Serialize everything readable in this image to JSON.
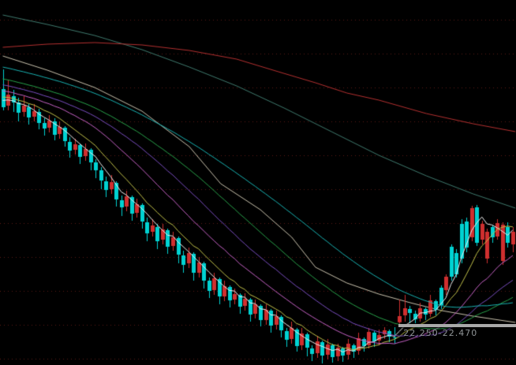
{
  "window": {
    "background": "#000000"
  },
  "chart_data": {
    "type": "candlestick",
    "title": "",
    "xlabel": "",
    "ylabel": "",
    "x_axis_visible": false,
    "y_axis_visible": false,
    "ylim": [
      19.85,
      43.0
    ],
    "bars_visible": 100,
    "grid": {
      "style": "dotted-horizontal",
      "color": "#5c1b14",
      "price_lines": [
        41.76,
        39.61,
        37.46,
        35.31,
        33.16,
        31.01,
        28.86,
        26.71,
        24.56,
        22.41,
        20.26
      ]
    },
    "candle_colors": {
      "up": "#cf2f2f",
      "down": "#00d2d2"
    },
    "gap": {
      "label": "22.250-22.470",
      "low": 22.25,
      "high": 22.47,
      "start_bar": 77,
      "band_color": "#a9a9a9",
      "label_color": "#8f9496"
    },
    "pre_closes": [
      43.3,
      43.2,
      43.15,
      43.05,
      43.0,
      42.9,
      42.85,
      42.75,
      42.7,
      42.6,
      42.55,
      42.45,
      42.4,
      42.3,
      42.25,
      42.15,
      42.1,
      42.0,
      41.95,
      41.85,
      41.8,
      41.7,
      41.65,
      41.55,
      41.5,
      41.4,
      41.35,
      41.25,
      41.2,
      41.1,
      41.05,
      40.95,
      40.9,
      40.8,
      40.75,
      40.65,
      40.6,
      40.5,
      40.45,
      40.35,
      40.3,
      40.2,
      40.15,
      40.05,
      40.0,
      39.9,
      39.85,
      39.75,
      39.7,
      39.6,
      39.55,
      39.45,
      39.4,
      39.3,
      39.25,
      39.15,
      39.1,
      39.0,
      38.95,
      38.85,
      38.8,
      38.7,
      38.65,
      38.55,
      38.5,
      38.4,
      38.35,
      38.25,
      38.2,
      38.1,
      38.05,
      37.95,
      37.9,
      37.8,
      37.75,
      37.65,
      37.6,
      37.5,
      37.45,
      37.35,
      37.3,
      37.2,
      37.15,
      37.05,
      37.0,
      36.9,
      36.85,
      36.75,
      36.7,
      36.65
    ],
    "candles": [
      [
        37.35,
        38.6,
        36.0,
        36.2,
        "c"
      ],
      [
        36.3,
        37.9,
        36.0,
        37.0,
        "r"
      ],
      [
        36.9,
        37.3,
        35.9,
        36.5,
        "c"
      ],
      [
        36.5,
        36.8,
        35.3,
        35.85,
        "c"
      ],
      [
        35.9,
        36.9,
        35.6,
        36.3,
        "r"
      ],
      [
        36.2,
        36.4,
        35.1,
        35.55,
        "c"
      ],
      [
        35.6,
        36.4,
        35.3,
        35.95,
        "r"
      ],
      [
        35.9,
        36.1,
        34.8,
        35.2,
        "c"
      ],
      [
        35.2,
        35.5,
        34.4,
        34.85,
        "c"
      ],
      [
        34.9,
        35.7,
        34.6,
        35.35,
        "r"
      ],
      [
        35.3,
        35.5,
        34.1,
        34.45,
        "c"
      ],
      [
        34.5,
        35.3,
        34.2,
        34.95,
        "r"
      ],
      [
        34.9,
        35.0,
        33.7,
        34.05,
        "c"
      ],
      [
        34.0,
        34.3,
        33.0,
        33.45,
        "c"
      ],
      [
        33.5,
        34.2,
        33.2,
        33.85,
        "r"
      ],
      [
        33.8,
        33.9,
        32.6,
        33.05,
        "c"
      ],
      [
        33.1,
        33.9,
        32.8,
        33.55,
        "r"
      ],
      [
        33.5,
        33.6,
        32.2,
        32.7,
        "c"
      ],
      [
        32.7,
        32.9,
        31.7,
        32.2,
        "c"
      ],
      [
        32.2,
        32.4,
        31.0,
        31.55,
        "c"
      ],
      [
        31.5,
        31.8,
        30.5,
        30.95,
        "c"
      ],
      [
        31.0,
        31.9,
        30.7,
        31.45,
        "r"
      ],
      [
        31.4,
        31.5,
        29.9,
        30.35,
        "c"
      ],
      [
        30.3,
        30.6,
        29.3,
        29.85,
        "c"
      ],
      [
        29.9,
        30.9,
        29.6,
        30.55,
        "r"
      ],
      [
        30.5,
        30.6,
        29.0,
        29.45,
        "c"
      ],
      [
        29.5,
        30.4,
        29.2,
        30.05,
        "r"
      ],
      [
        30.0,
        30.1,
        28.5,
        28.95,
        "c"
      ],
      [
        28.9,
        29.2,
        27.7,
        28.2,
        "c"
      ],
      [
        28.3,
        29.1,
        28.0,
        28.7,
        "r"
      ],
      [
        28.6,
        28.8,
        27.2,
        27.7,
        "c"
      ],
      [
        27.8,
        28.8,
        27.5,
        28.45,
        "r"
      ],
      [
        28.4,
        28.5,
        26.9,
        27.35,
        "c"
      ],
      [
        27.4,
        28.3,
        27.1,
        27.95,
        "r"
      ],
      [
        27.9,
        28.0,
        26.3,
        26.85,
        "c"
      ],
      [
        26.8,
        27.1,
        25.7,
        26.2,
        "c"
      ],
      [
        26.3,
        27.3,
        26.0,
        26.95,
        "r"
      ],
      [
        26.9,
        27.0,
        25.2,
        25.7,
        "c"
      ],
      [
        25.7,
        26.7,
        25.4,
        26.35,
        "r"
      ],
      [
        26.3,
        26.4,
        24.7,
        25.2,
        "c"
      ],
      [
        25.2,
        25.4,
        24.1,
        24.55,
        "c"
      ],
      [
        24.6,
        25.7,
        24.3,
        25.35,
        "r"
      ],
      [
        25.3,
        25.4,
        23.7,
        24.2,
        "c"
      ],
      [
        24.2,
        25.2,
        23.9,
        24.85,
        "r"
      ],
      [
        24.8,
        24.9,
        23.5,
        23.95,
        "c"
      ],
      [
        24.0,
        24.7,
        23.7,
        24.35,
        "r"
      ],
      [
        24.3,
        24.4,
        23.1,
        23.55,
        "c"
      ],
      [
        23.6,
        24.4,
        23.3,
        24.05,
        "r"
      ],
      [
        24.0,
        24.1,
        22.6,
        23.05,
        "c"
      ],
      [
        23.1,
        24.0,
        22.8,
        23.7,
        "r"
      ],
      [
        23.6,
        23.7,
        22.3,
        22.7,
        "c"
      ],
      [
        22.7,
        23.7,
        22.4,
        23.35,
        "r"
      ],
      [
        23.3,
        23.4,
        21.9,
        22.35,
        "c"
      ],
      [
        22.4,
        23.3,
        22.1,
        22.95,
        "r"
      ],
      [
        22.9,
        23.0,
        21.6,
        22.05,
        "c"
      ],
      [
        22.0,
        22.2,
        21.0,
        21.45,
        "c"
      ],
      [
        21.5,
        22.6,
        21.2,
        22.2,
        "r"
      ],
      [
        22.1,
        22.2,
        20.7,
        21.05,
        "c"
      ],
      [
        21.1,
        22.2,
        20.8,
        21.85,
        "r"
      ],
      [
        21.8,
        21.9,
        20.4,
        20.95,
        "c"
      ],
      [
        20.9,
        21.1,
        20.1,
        20.55,
        "c"
      ],
      [
        20.6,
        21.7,
        20.3,
        21.35,
        "r"
      ],
      [
        21.3,
        21.4,
        19.95,
        20.45,
        "c"
      ],
      [
        20.5,
        21.5,
        20.2,
        21.15,
        "r"
      ],
      [
        21.1,
        21.2,
        20.0,
        20.35,
        "c"
      ],
      [
        20.4,
        21.2,
        20.1,
        20.95,
        "r"
      ],
      [
        20.9,
        21.0,
        20.05,
        20.45,
        "c"
      ],
      [
        20.5,
        21.5,
        20.2,
        21.2,
        "r"
      ],
      [
        21.1,
        21.2,
        20.3,
        20.7,
        "c"
      ],
      [
        20.75,
        21.9,
        20.5,
        21.55,
        "r"
      ],
      [
        21.5,
        21.6,
        20.7,
        21.05,
        "c"
      ],
      [
        21.1,
        22.2,
        20.9,
        21.95,
        "r"
      ],
      [
        21.9,
        22.0,
        21.0,
        21.35,
        "c"
      ],
      [
        21.4,
        22.1,
        21.1,
        21.75,
        "r"
      ],
      [
        21.8,
        22.25,
        21.5,
        22.05,
        "r"
      ],
      [
        22.0,
        22.1,
        21.3,
        21.65,
        "c"
      ],
      [
        21.6,
        22.25,
        21.2,
        21.55,
        "c"
      ],
      [
        22.56,
        24.0,
        22.47,
        22.95,
        "r"
      ],
      [
        23.0,
        24.3,
        22.6,
        23.45,
        "r"
      ],
      [
        23.4,
        23.6,
        22.5,
        23.15,
        "c"
      ],
      [
        23.1,
        23.3,
        22.5,
        22.75,
        "c"
      ],
      [
        22.8,
        23.8,
        22.6,
        23.45,
        "r"
      ],
      [
        23.4,
        23.5,
        22.7,
        23.05,
        "c"
      ],
      [
        23.1,
        24.3,
        22.9,
        23.95,
        "r"
      ],
      [
        23.9,
        24.0,
        23.0,
        23.35,
        "c"
      ],
      [
        23.65,
        24.9,
        23.4,
        24.75,
        "c"
      ],
      [
        24.6,
        25.6,
        24.3,
        25.45,
        "r"
      ],
      [
        25.45,
        27.5,
        25.2,
        27.35,
        "c"
      ],
      [
        25.6,
        27.2,
        25.4,
        26.95,
        "c"
      ],
      [
        26.6,
        29.1,
        26.3,
        28.8,
        "c"
      ],
      [
        27.3,
        29.2,
        27.0,
        28.95,
        "c"
      ],
      [
        27.95,
        29.95,
        27.7,
        29.8,
        "r"
      ],
      [
        27.6,
        30.0,
        27.4,
        29.85,
        "c"
      ],
      [
        27.8,
        29.0,
        27.5,
        28.8,
        "r"
      ],
      [
        28.3,
        28.5,
        26.3,
        26.6,
        "r"
      ],
      [
        27.95,
        28.7,
        27.6,
        28.6,
        "c"
      ],
      [
        28.0,
        29.1,
        27.8,
        28.85,
        "r"
      ],
      [
        26.45,
        28.9,
        26.2,
        28.75,
        "r"
      ],
      [
        28.6,
        28.9,
        27.3,
        27.6,
        "c"
      ],
      [
        27.5,
        28.6,
        27.0,
        28.3,
        "r"
      ]
    ],
    "moving_averages": [
      {
        "name": "MA5",
        "window": 5,
        "color": "#f0f0f0"
      },
      {
        "name": "MA10",
        "window": 10,
        "color": "#c2c24a"
      },
      {
        "name": "MA20",
        "window": 20,
        "color": "#c662c6"
      },
      {
        "name": "MA30",
        "window": 30,
        "color": "#7a4ec2"
      },
      {
        "name": "MA40",
        "window": 40,
        "color": "#28a24a"
      },
      {
        "name": "MA60",
        "window": 60,
        "color": "#18b2b2"
      }
    ],
    "long_lines": [
      {
        "name": "ma-long-gray",
        "color": "#c9c2ad",
        "points": [
          [
            0,
            39.45
          ],
          [
            8.65,
            38.55
          ],
          [
            17.84,
            37.45
          ],
          [
            27.03,
            35.95
          ],
          [
            36.2,
            33.7
          ],
          [
            42.3,
            31.35
          ],
          [
            50.0,
            29.7
          ],
          [
            56.1,
            27.95
          ],
          [
            60.7,
            26.05
          ],
          [
            66.8,
            25.05
          ],
          [
            73.0,
            24.35
          ],
          [
            79.1,
            23.8
          ],
          [
            85.2,
            23.3
          ],
          [
            91.3,
            22.95
          ],
          [
            99.5,
            22.55
          ]
        ]
      },
      {
        "name": "ma-long-teal",
        "color": "#3f7a6e",
        "points": [
          [
            0,
            42.05
          ],
          [
            8.65,
            41.45
          ],
          [
            17.84,
            40.75
          ],
          [
            27.03,
            39.85
          ],
          [
            36.2,
            38.75
          ],
          [
            45.4,
            37.55
          ],
          [
            54.6,
            36.15
          ],
          [
            63.8,
            34.65
          ],
          [
            73.0,
            33.15
          ],
          [
            82.2,
            31.85
          ],
          [
            91.3,
            30.7
          ],
          [
            99.5,
            29.8
          ]
        ]
      },
      {
        "name": "ma-long-red",
        "color": "#b43030",
        "points": [
          [
            0,
            40.0
          ],
          [
            8.65,
            40.2
          ],
          [
            17.84,
            40.3
          ],
          [
            27.03,
            40.15
          ],
          [
            36.2,
            39.8
          ],
          [
            45.4,
            39.25
          ],
          [
            53.5,
            38.45
          ],
          [
            60.7,
            37.75
          ],
          [
            66.8,
            37.1
          ],
          [
            73.0,
            36.65
          ],
          [
            82.2,
            35.8
          ],
          [
            91.3,
            35.15
          ],
          [
            99.5,
            34.65
          ]
        ]
      }
    ]
  }
}
